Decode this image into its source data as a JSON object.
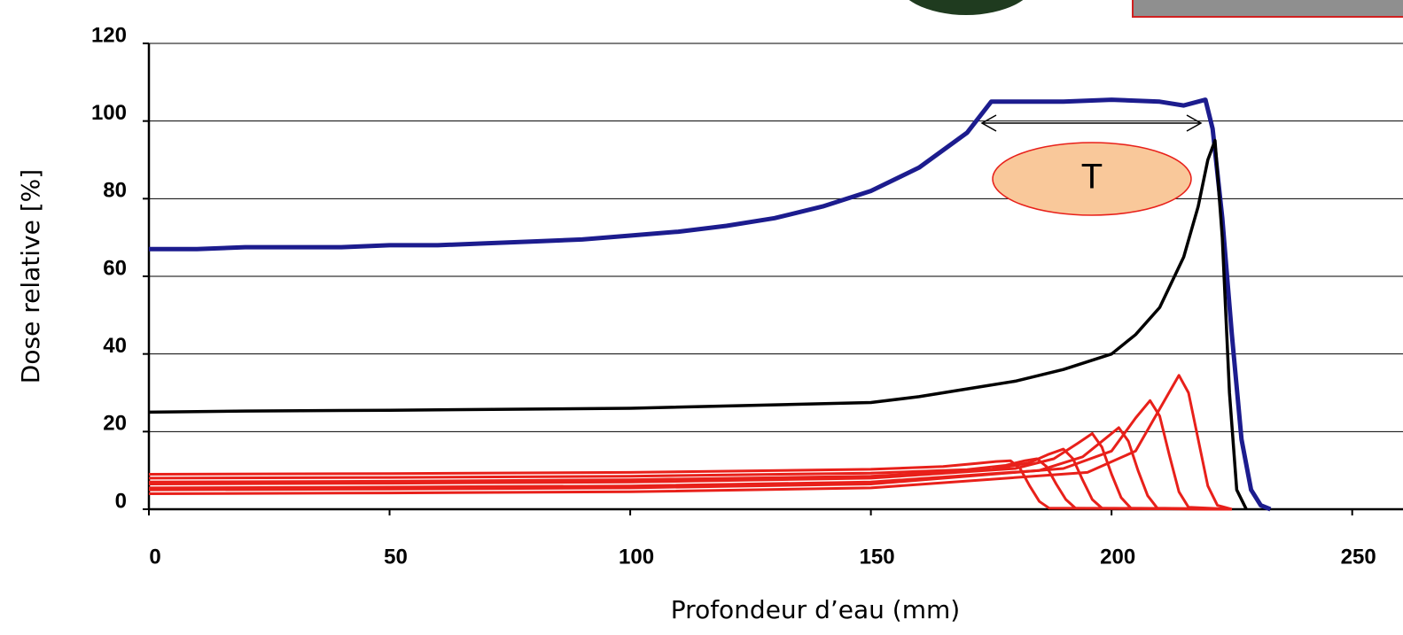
{
  "chart_data": {
    "type": "line",
    "x_label": "Profondeur d’eau (mm)",
    "y_label": "Dose relative [%]",
    "annotation": "T",
    "xlim": [
      0,
      260
    ],
    "ylim": [
      0,
      120
    ],
    "xticks": [
      0,
      50,
      100,
      150,
      200,
      250
    ],
    "yticks": [
      0,
      20,
      40,
      60,
      80,
      100,
      120
    ],
    "grid": true,
    "series": [
      {
        "color": "#1c1c8e",
        "width": 5,
        "x": [
          0,
          10,
          20,
          30,
          40,
          50,
          60,
          70,
          80,
          90,
          100,
          110,
          120,
          130,
          140,
          150,
          160,
          170,
          175,
          180,
          190,
          200,
          210,
          215,
          219.5,
          221,
          223,
          225,
          227,
          229,
          231,
          233
        ],
        "values": [
          67,
          67,
          67.5,
          67.5,
          67.5,
          68,
          68,
          68.5,
          69,
          69.5,
          70.5,
          71.5,
          73,
          75,
          78,
          82,
          88,
          97,
          105,
          105,
          105,
          105.5,
          105,
          104,
          105.5,
          98,
          75,
          45,
          18,
          5,
          1,
          0
        ]
      },
      {
        "color": "#000000",
        "width": 3.5,
        "x": [
          0,
          20,
          50,
          100,
          150,
          160,
          170,
          180,
          190,
          195,
          200,
          205,
          210,
          215,
          218,
          220,
          221.5,
          223,
          224.5,
          226,
          228
        ],
        "values": [
          25,
          25.3,
          25.5,
          26,
          27.5,
          29,
          31,
          33,
          36,
          38,
          40,
          45,
          52,
          65,
          78,
          90,
          95,
          70,
          30,
          5,
          0
        ]
      },
      {
        "color": "#e8201a",
        "width": 3,
        "x": [
          0,
          50,
          100,
          150,
          165,
          172,
          176,
          179,
          181,
          183,
          185,
          187,
          225
        ],
        "values": [
          9,
          9.2,
          9.5,
          10.3,
          11,
          11.8,
          12.3,
          12.5,
          10.5,
          6,
          2,
          0.3,
          0
        ]
      },
      {
        "color": "#e8201a",
        "width": 3,
        "x": [
          0,
          50,
          100,
          150,
          170,
          178,
          182,
          184.5,
          186.5,
          188.5,
          190.5,
          192.5,
          225
        ],
        "values": [
          8,
          8.2,
          8.5,
          9.3,
          10.2,
          11.3,
          12.5,
          13,
          11,
          6.5,
          2.5,
          0.3,
          0
        ]
      },
      {
        "color": "#e8201a",
        "width": 3,
        "x": [
          0,
          50,
          100,
          150,
          175,
          183,
          187,
          190,
          192,
          194,
          196,
          198,
          225
        ],
        "values": [
          7,
          7.2,
          7.6,
          8.5,
          10.2,
          12,
          14.2,
          15.5,
          13,
          7.5,
          2.5,
          0.3,
          0
        ]
      },
      {
        "color": "#e8201a",
        "width": 3,
        "x": [
          0,
          50,
          100,
          150,
          180,
          188,
          193,
          196,
          198,
          200,
          202,
          204,
          225
        ],
        "values": [
          6.5,
          6.7,
          7,
          8,
          10.5,
          13,
          17,
          19.5,
          16,
          9,
          3,
          0.3,
          0
        ]
      },
      {
        "color": "#e8201a",
        "width": 3,
        "x": [
          0,
          50,
          100,
          150,
          185,
          194,
          199,
          201.5,
          203.5,
          205.5,
          207.5,
          209.5,
          225
        ],
        "values": [
          5.5,
          5.7,
          6,
          7,
          10,
          13.5,
          18.5,
          21,
          17.5,
          10,
          3.5,
          0.3,
          0
        ]
      },
      {
        "color": "#e8201a",
        "width": 3,
        "x": [
          0,
          50,
          100,
          150,
          190,
          200,
          205,
          208,
          210,
          212,
          214,
          216,
          225
        ],
        "values": [
          5,
          5.2,
          5.5,
          6.5,
          10.5,
          15,
          23.5,
          28,
          24,
          14,
          4.5,
          0.5,
          0
        ]
      },
      {
        "color": "#e8201a",
        "width": 3,
        "x": [
          0,
          50,
          100,
          150,
          195,
          205,
          211,
          214,
          216,
          218,
          220,
          222,
          225
        ],
        "values": [
          4,
          4.2,
          4.5,
          5.5,
          9.5,
          15,
          28,
          34.5,
          30,
          18,
          6,
          1,
          0
        ]
      }
    ]
  }
}
